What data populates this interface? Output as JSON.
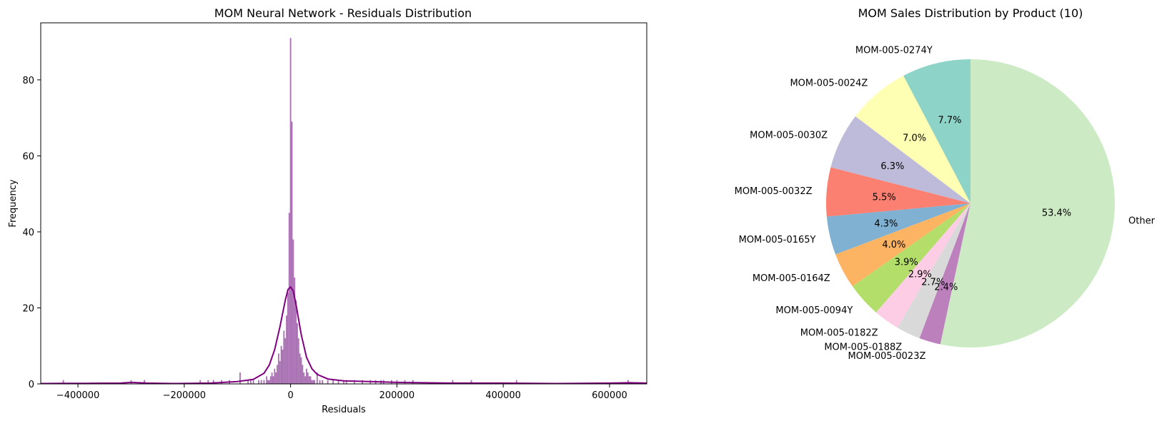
{
  "chart_data": [
    {
      "type": "histogram",
      "title": "MOM Neural Network - Residuals Distribution",
      "xlabel": "Residuals",
      "ylabel": "Frequency",
      "xlim": [
        -470000,
        670000
      ],
      "ylim": [
        0,
        95
      ],
      "xticks": [
        -400000,
        -200000,
        0,
        200000,
        400000,
        600000
      ],
      "xtick_labels": [
        "−400000",
        "−200000",
        "0",
        "200000",
        "400000",
        "600000"
      ],
      "yticks": [
        0,
        20,
        40,
        60,
        80
      ],
      "ytick_labels": [
        "0",
        "20",
        "40",
        "60",
        "80"
      ],
      "bin_width": 2500,
      "bar_color": "#9b59a6",
      "kde_color": "#800080",
      "grid": false,
      "bins": [
        {
          "x": -60000,
          "count": 1
        },
        {
          "x": -55000,
          "count": 1
        },
        {
          "x": -50000,
          "count": 1
        },
        {
          "x": -45000,
          "count": 2
        },
        {
          "x": -42500,
          "count": 1
        },
        {
          "x": -40000,
          "count": 1
        },
        {
          "x": -37500,
          "count": 2
        },
        {
          "x": -35000,
          "count": 3
        },
        {
          "x": -32500,
          "count": 2
        },
        {
          "x": -30000,
          "count": 4
        },
        {
          "x": -27500,
          "count": 3
        },
        {
          "x": -25000,
          "count": 5
        },
        {
          "x": -22500,
          "count": 8
        },
        {
          "x": -20000,
          "count": 6
        },
        {
          "x": -17500,
          "count": 10
        },
        {
          "x": -15000,
          "count": 9
        },
        {
          "x": -12500,
          "count": 14
        },
        {
          "x": -10000,
          "count": 12
        },
        {
          "x": -7500,
          "count": 18
        },
        {
          "x": -5000,
          "count": 24
        },
        {
          "x": -2500,
          "count": 45
        },
        {
          "x": 0,
          "count": 91
        },
        {
          "x": 2500,
          "count": 69
        },
        {
          "x": 5000,
          "count": 38
        },
        {
          "x": 7500,
          "count": 28
        },
        {
          "x": 10000,
          "count": 22
        },
        {
          "x": 12500,
          "count": 16
        },
        {
          "x": 15000,
          "count": 12
        },
        {
          "x": 17500,
          "count": 8
        },
        {
          "x": 20000,
          "count": 7
        },
        {
          "x": 22500,
          "count": 5
        },
        {
          "x": 25000,
          "count": 3
        },
        {
          "x": 27500,
          "count": 2
        },
        {
          "x": 30000,
          "count": 4
        },
        {
          "x": 32500,
          "count": 3
        },
        {
          "x": 35000,
          "count": 2
        },
        {
          "x": 37500,
          "count": 2
        },
        {
          "x": 40000,
          "count": 1
        },
        {
          "x": 42500,
          "count": 1
        },
        {
          "x": 45000,
          "count": 1
        },
        {
          "x": 50000,
          "count": 3
        },
        {
          "x": 55000,
          "count": 1
        },
        {
          "x": 60000,
          "count": 1
        },
        {
          "x": 70000,
          "count": 1
        },
        {
          "x": 80000,
          "count": 1
        },
        {
          "x": 90000,
          "count": 1
        },
        {
          "x": 100000,
          "count": 1
        },
        {
          "x": 105000,
          "count": 1
        },
        {
          "x": 120000,
          "count": 1
        },
        {
          "x": 135000,
          "count": 1
        },
        {
          "x": 150000,
          "count": 1
        },
        {
          "x": 160000,
          "count": 1
        },
        {
          "x": 170000,
          "count": 1
        },
        {
          "x": 175000,
          "count": 1
        },
        {
          "x": 190000,
          "count": 1
        },
        {
          "x": 200000,
          "count": 1
        },
        {
          "x": 215000,
          "count": 1
        },
        {
          "x": 230000,
          "count": 1
        },
        {
          "x": 305000,
          "count": 1
        },
        {
          "x": 340000,
          "count": 1
        },
        {
          "x": 425000,
          "count": 1
        },
        {
          "x": 635000,
          "count": 1
        },
        {
          "x": -427500,
          "count": 1
        },
        {
          "x": -300000,
          "count": 1
        },
        {
          "x": -275000,
          "count": 1
        },
        {
          "x": -170000,
          "count": 1
        },
        {
          "x": -155000,
          "count": 1
        },
        {
          "x": -145000,
          "count": 1
        },
        {
          "x": -130000,
          "count": 1
        },
        {
          "x": -115000,
          "count": 1
        },
        {
          "x": -95000,
          "count": 3
        },
        {
          "x": -80000,
          "count": 1
        },
        {
          "x": -75000,
          "count": 1
        },
        {
          "x": -70000,
          "count": 1
        }
      ],
      "kde": [
        [
          -470000,
          0.1
        ],
        [
          -430000,
          0.15
        ],
        [
          -380000,
          0.15
        ],
        [
          -320000,
          0.2
        ],
        [
          -300000,
          0.4
        ],
        [
          -270000,
          0.2
        ],
        [
          -220000,
          0.1
        ],
        [
          -150000,
          0.2
        ],
        [
          -100000,
          0.6
        ],
        [
          -70000,
          1.2
        ],
        [
          -50000,
          2.8
        ],
        [
          -40000,
          5
        ],
        [
          -30000,
          9
        ],
        [
          -20000,
          15
        ],
        [
          -10000,
          22
        ],
        [
          -5000,
          24.8
        ],
        [
          0,
          25.5
        ],
        [
          5000,
          24.5
        ],
        [
          10000,
          21
        ],
        [
          20000,
          13
        ],
        [
          30000,
          7
        ],
        [
          40000,
          4
        ],
        [
          50000,
          2.5
        ],
        [
          70000,
          1.3
        ],
        [
          100000,
          0.8
        ],
        [
          150000,
          0.6
        ],
        [
          200000,
          0.4
        ],
        [
          300000,
          0.2
        ],
        [
          400000,
          0.2
        ],
        [
          500000,
          0.1
        ],
        [
          600000,
          0.2
        ],
        [
          640000,
          0.3
        ],
        [
          670000,
          0.2
        ]
      ]
    },
    {
      "type": "pie",
      "title": "MOM Sales Distribution by Product (10)",
      "start_angle_deg": 90,
      "direction": "counterclockwise",
      "slices": [
        {
          "label": "MOM-005-0274Y",
          "value": 7.7,
          "pct": "7.7%",
          "color": "#8dd3c7"
        },
        {
          "label": "MOM-005-0024Z",
          "value": 7.0,
          "pct": "7.0%",
          "color": "#ffffb3"
        },
        {
          "label": "MOM-005-0030Z",
          "value": 6.3,
          "pct": "6.3%",
          "color": "#bebada"
        },
        {
          "label": "MOM-005-0032Z",
          "value": 5.5,
          "pct": "5.5%",
          "color": "#fb8072"
        },
        {
          "label": "MOM-005-0165Y",
          "value": 4.3,
          "pct": "4.3%",
          "color": "#80b1d3"
        },
        {
          "label": "MOM-005-0164Z",
          "value": 4.0,
          "pct": "4.0%",
          "color": "#fdb462"
        },
        {
          "label": "MOM-005-0094Y",
          "value": 3.9,
          "pct": "3.9%",
          "color": "#b3de69"
        },
        {
          "label": "MOM-005-0182Z",
          "value": 2.9,
          "pct": "2.9%",
          "color": "#fccde5"
        },
        {
          "label": "MOM-005-0188Z",
          "value": 2.7,
          "pct": "2.7%",
          "color": "#d9d9d9"
        },
        {
          "label": "MOM-005-0023Z",
          "value": 2.4,
          "pct": "2.4%",
          "color": "#bc80bd"
        },
        {
          "label": "Other",
          "value": 53.4,
          "pct": "53.4%",
          "color": "#ccebc5"
        }
      ]
    }
  ]
}
